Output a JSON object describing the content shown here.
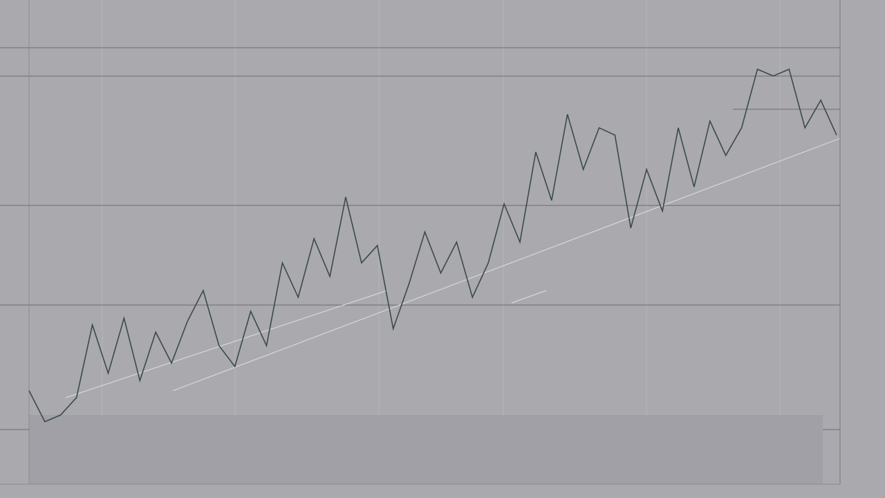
{
  "chart_data": {
    "type": "line",
    "color": "#3a4a48",
    "values": [
      19.3,
      12.9,
      14.3,
      17.9,
      32.9,
      22.9,
      34.3,
      21.4,
      31.4,
      25,
      33.6,
      40,
      28.6,
      24.3,
      35.7,
      28.6,
      45.7,
      38.6,
      50.7,
      42.9,
      59.3,
      45.7,
      49.3,
      32.1,
      41.4,
      52.1,
      43.6,
      50,
      38.6,
      45.7,
      57.9,
      50,
      68.6,
      58.6,
      76.4,
      65,
      73.6,
      72.1,
      52.9,
      65,
      56.4,
      73.6,
      61.4,
      75,
      67.9,
      73.6,
      85.7,
      84.3,
      85.7,
      73.6,
      79.3,
      72.1
    ],
    "ylim": [
      0,
      100
    ],
    "grid": true
  }
}
